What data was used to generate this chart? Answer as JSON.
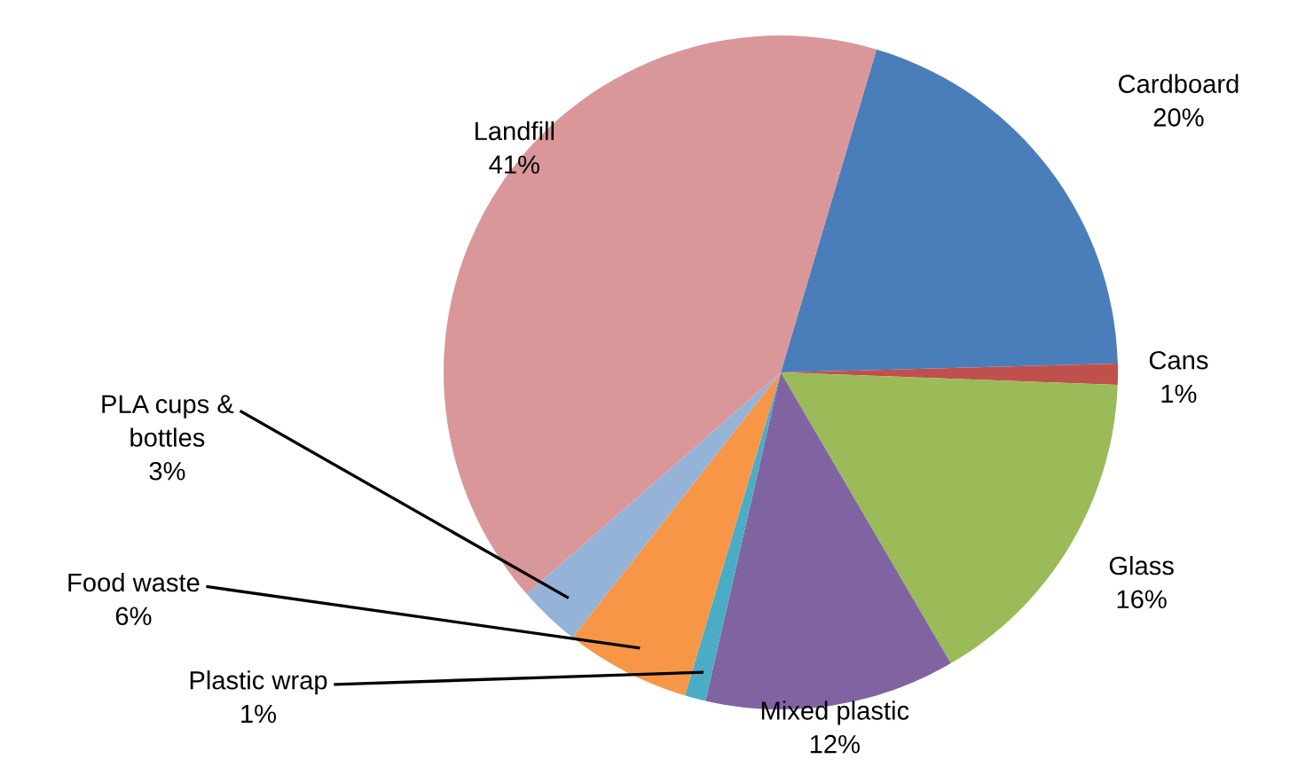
{
  "chart_data": {
    "type": "pie",
    "categories": [
      "Cardboard",
      "Cans",
      "Glass",
      "Mixed plastic",
      "Plastic wrap",
      "Food waste",
      "PLA cups & bottles",
      "Landfill"
    ],
    "values": [
      20,
      1,
      16,
      12,
      1,
      6,
      3,
      41
    ],
    "colors": [
      "#4a7ebb",
      "#c0504d",
      "#9bbb59",
      "#8064a2",
      "#4bacc6",
      "#f79646",
      "#95b3d7",
      "#d9979a"
    ],
    "value_labels": [
      "20%",
      "1%",
      "16%",
      "12%",
      "1%",
      "6%",
      "3%",
      "41%"
    ],
    "legend": false
  }
}
